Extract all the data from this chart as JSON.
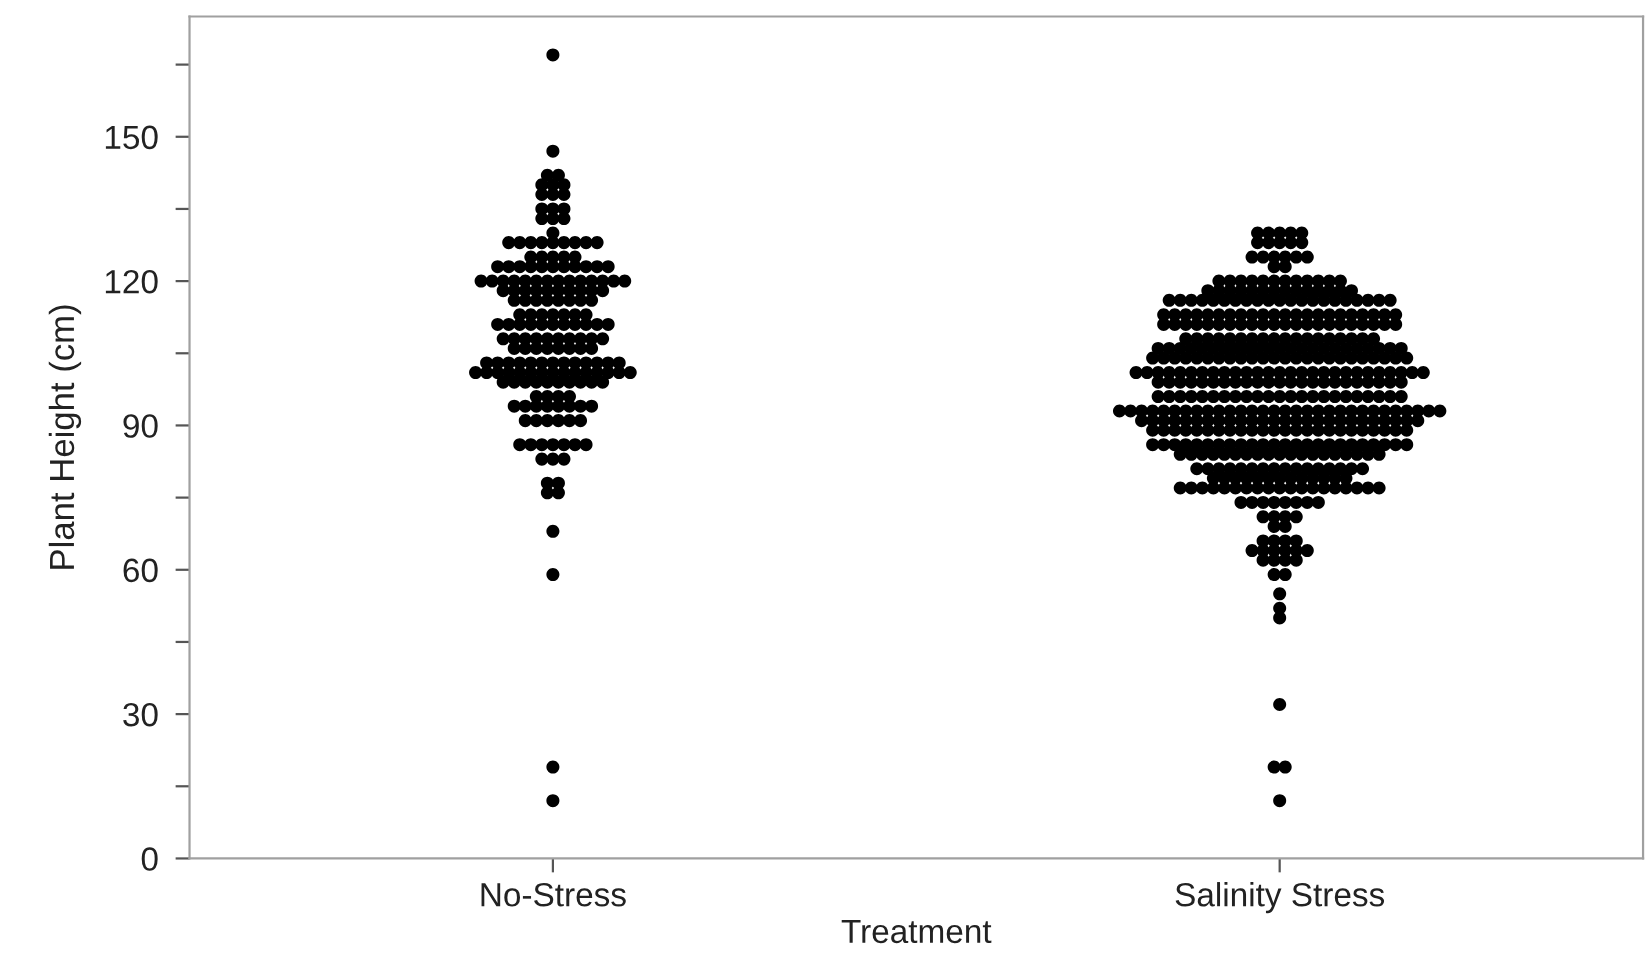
{
  "chart_data": {
    "type": "scatter",
    "xlabel": "Treatment",
    "ylabel": "Plant Height (cm)",
    "categories": [
      "No-Stress",
      "Salinity Stress"
    ],
    "ylim": [
      0,
      175
    ],
    "yticks": [
      0,
      {
        "value": 15,
        "label": null
      },
      30,
      {
        "value": 45,
        "label": null
      },
      60,
      {
        "value": 75,
        "label": null
      },
      90,
      {
        "value": 105,
        "label": null
      },
      120,
      {
        "value": 135,
        "label": null
      },
      150,
      {
        "value": 165,
        "label": null
      }
    ],
    "grid": false,
    "legend": false,
    "marker": "circle",
    "series": [
      {
        "color": "#000000",
        "x": [
          "No-Stress",
          "No-Stress",
          "No-Stress",
          "No-Stress",
          "No-Stress",
          "No-Stress",
          "No-Stress",
          "No-Stress",
          "No-Stress",
          "No-Stress",
          "No-Stress",
          "No-Stress",
          "No-Stress",
          "No-Stress",
          "No-Stress",
          "No-Stress",
          "No-Stress",
          "No-Stress",
          "No-Stress",
          "No-Stress",
          "No-Stress",
          "No-Stress",
          "No-Stress",
          "No-Stress",
          "No-Stress",
          "No-Stress",
          "No-Stress",
          "No-Stress",
          "No-Stress",
          "No-Stress",
          "No-Stress",
          "No-Stress",
          "No-Stress",
          "No-Stress",
          "No-Stress",
          "No-Stress",
          "No-Stress",
          "No-Stress",
          "No-Stress",
          "No-Stress",
          "No-Stress",
          "No-Stress",
          "No-Stress",
          "No-Stress",
          "No-Stress",
          "No-Stress",
          "No-Stress",
          "No-Stress",
          "No-Stress",
          "No-Stress",
          "No-Stress",
          "No-Stress",
          "No-Stress",
          "No-Stress",
          "No-Stress",
          "No-Stress",
          "No-Stress",
          "No-Stress",
          "No-Stress",
          "No-Stress",
          "No-Stress",
          "No-Stress",
          "No-Stress",
          "No-Stress",
          "No-Stress",
          "No-Stress",
          "No-Stress",
          "No-Stress",
          "No-Stress",
          "No-Stress",
          "No-Stress",
          "No-Stress",
          "No-Stress",
          "No-Stress",
          "No-Stress",
          "No-Stress",
          "No-Stress",
          "No-Stress",
          "No-Stress",
          "No-Stress",
          "No-Stress",
          "No-Stress",
          "No-Stress",
          "No-Stress",
          "No-Stress",
          "No-Stress",
          "No-Stress",
          "No-Stress",
          "No-Stress",
          "No-Stress",
          "No-Stress",
          "No-Stress",
          "No-Stress",
          "No-Stress",
          "No-Stress",
          "No-Stress",
          "No-Stress",
          "No-Stress",
          "No-Stress",
          "No-Stress",
          "No-Stress",
          "No-Stress",
          "No-Stress",
          "No-Stress",
          "No-Stress",
          "No-Stress",
          "No-Stress",
          "No-Stress",
          "No-Stress",
          "No-Stress",
          "No-Stress",
          "No-Stress",
          "No-Stress",
          "No-Stress",
          "No-Stress",
          "No-Stress",
          "No-Stress",
          "No-Stress",
          "No-Stress",
          "No-Stress",
          "No-Stress",
          "No-Stress",
          "No-Stress",
          "No-Stress",
          "No-Stress",
          "No-Stress",
          "No-Stress",
          "No-Stress",
          "No-Stress",
          "No-Stress",
          "No-Stress",
          "No-Stress",
          "No-Stress",
          "No-Stress",
          "No-Stress",
          "No-Stress",
          "No-Stress",
          "No-Stress",
          "No-Stress",
          "No-Stress",
          "No-Stress",
          "No-Stress",
          "No-Stress",
          "No-Stress",
          "No-Stress",
          "No-Stress",
          "No-Stress",
          "No-Stress",
          "No-Stress",
          "No-Stress",
          "No-Stress",
          "No-Stress",
          "No-Stress",
          "No-Stress",
          "No-Stress",
          "No-Stress",
          "No-Stress",
          "No-Stress",
          "No-Stress",
          "No-Stress",
          "No-Stress",
          "No-Stress",
          "No-Stress",
          "No-Stress",
          "No-Stress",
          "No-Stress",
          "No-Stress",
          "No-Stress",
          "No-Stress",
          "No-Stress",
          "No-Stress",
          "No-Stress",
          "No-Stress",
          "No-Stress",
          "No-Stress",
          "No-Stress",
          "No-Stress",
          "No-Stress",
          "No-Stress",
          "No-Stress",
          "No-Stress",
          "No-Stress",
          "No-Stress",
          "No-Stress"
        ],
        "values": [
          167,
          147,
          142,
          142,
          140,
          140,
          140,
          138,
          138,
          138,
          135,
          135,
          135,
          133,
          133,
          133,
          130,
          128,
          128,
          128,
          128,
          128,
          128,
          128,
          128,
          128,
          125,
          125,
          125,
          125,
          125,
          123,
          123,
          123,
          123,
          123,
          123,
          123,
          123,
          123,
          123,
          123,
          120,
          120,
          120,
          120,
          120,
          120,
          120,
          120,
          120,
          120,
          120,
          120,
          120,
          120,
          118,
          118,
          118,
          118,
          118,
          118,
          118,
          118,
          118,
          118,
          116,
          116,
          116,
          116,
          116,
          116,
          116,
          116,
          113,
          113,
          113,
          113,
          113,
          113,
          113,
          111,
          111,
          111,
          111,
          111,
          111,
          111,
          111,
          111,
          111,
          111,
          108,
          108,
          108,
          108,
          108,
          108,
          108,
          108,
          108,
          108,
          106,
          106,
          106,
          106,
          106,
          106,
          106,
          106,
          103,
          103,
          103,
          103,
          103,
          103,
          103,
          103,
          103,
          103,
          103,
          103,
          103,
          101,
          101,
          101,
          101,
          101,
          101,
          101,
          101,
          101,
          101,
          101,
          101,
          101,
          101,
          101,
          99,
          99,
          99,
          99,
          99,
          99,
          99,
          99,
          99,
          99,
          96,
          96,
          96,
          96,
          94,
          94,
          94,
          94,
          94,
          94,
          94,
          94,
          91,
          91,
          91,
          91,
          91,
          91,
          86,
          86,
          86,
          86,
          86,
          86,
          86,
          83,
          83,
          83,
          78,
          78,
          76,
          76,
          68,
          59,
          19,
          12
        ]
      },
      {
        "color": "#000000",
        "x": [
          "Salinity Stress",
          "Salinity Stress",
          "Salinity Stress",
          "Salinity Stress",
          "Salinity Stress",
          "Salinity Stress",
          "Salinity Stress",
          "Salinity Stress",
          "Salinity Stress",
          "Salinity Stress",
          "Salinity Stress",
          "Salinity Stress",
          "Salinity Stress",
          "Salinity Stress",
          "Salinity Stress",
          "Salinity Stress",
          "Salinity Stress",
          "Salinity Stress",
          "Salinity Stress",
          "Salinity Stress",
          "Salinity Stress",
          "Salinity Stress",
          "Salinity Stress",
          "Salinity Stress",
          "Salinity Stress",
          "Salinity Stress",
          "Salinity Stress",
          "Salinity Stress",
          "Salinity Stress",
          "Salinity Stress",
          "Salinity Stress",
          "Salinity Stress",
          "Salinity Stress",
          "Salinity Stress",
          "Salinity Stress",
          "Salinity Stress",
          "Salinity Stress",
          "Salinity Stress",
          "Salinity Stress",
          "Salinity Stress",
          "Salinity Stress",
          "Salinity Stress",
          "Salinity Stress",
          "Salinity Stress",
          "Salinity Stress",
          "Salinity Stress",
          "Salinity Stress",
          "Salinity Stress",
          "Salinity Stress",
          "Salinity Stress",
          "Salinity Stress",
          "Salinity Stress",
          "Salinity Stress",
          "Salinity Stress",
          "Salinity Stress",
          "Salinity Stress",
          "Salinity Stress",
          "Salinity Stress",
          "Salinity Stress",
          "Salinity Stress",
          "Salinity Stress",
          "Salinity Stress",
          "Salinity Stress",
          "Salinity Stress",
          "Salinity Stress",
          "Salinity Stress",
          "Salinity Stress",
          "Salinity Stress",
          "Salinity Stress",
          "Salinity Stress",
          "Salinity Stress",
          "Salinity Stress",
          "Salinity Stress",
          "Salinity Stress",
          "Salinity Stress",
          "Salinity Stress",
          "Salinity Stress",
          "Salinity Stress",
          "Salinity Stress",
          "Salinity Stress",
          "Salinity Stress",
          "Salinity Stress",
          "Salinity Stress",
          "Salinity Stress",
          "Salinity Stress",
          "Salinity Stress",
          "Salinity Stress",
          "Salinity Stress",
          "Salinity Stress",
          "Salinity Stress",
          "Salinity Stress",
          "Salinity Stress",
          "Salinity Stress",
          "Salinity Stress",
          "Salinity Stress",
          "Salinity Stress",
          "Salinity Stress",
          "Salinity Stress",
          "Salinity Stress",
          "Salinity Stress",
          "Salinity Stress",
          "Salinity Stress",
          "Salinity Stress",
          "Salinity Stress",
          "Salinity Stress",
          "Salinity Stress",
          "Salinity Stress",
          "Salinity Stress",
          "Salinity Stress",
          "Salinity Stress",
          "Salinity Stress",
          "Salinity Stress",
          "Salinity Stress",
          "Salinity Stress",
          "Salinity Stress",
          "Salinity Stress",
          "Salinity Stress",
          "Salinity Stress",
          "Salinity Stress",
          "Salinity Stress",
          "Salinity Stress",
          "Salinity Stress",
          "Salinity Stress",
          "Salinity Stress",
          "Salinity Stress",
          "Salinity Stress",
          "Salinity Stress",
          "Salinity Stress",
          "Salinity Stress",
          "Salinity Stress",
          "Salinity Stress",
          "Salinity Stress",
          "Salinity Stress",
          "Salinity Stress",
          "Salinity Stress",
          "Salinity Stress",
          "Salinity Stress",
          "Salinity Stress",
          "Salinity Stress",
          "Salinity Stress",
          "Salinity Stress",
          "Salinity Stress",
          "Salinity Stress",
          "Salinity Stress",
          "Salinity Stress",
          "Salinity Stress",
          "Salinity Stress",
          "Salinity Stress",
          "Salinity Stress",
          "Salinity Stress",
          "Salinity Stress",
          "Salinity Stress",
          "Salinity Stress",
          "Salinity Stress",
          "Salinity Stress",
          "Salinity Stress",
          "Salinity Stress",
          "Salinity Stress",
          "Salinity Stress",
          "Salinity Stress",
          "Salinity Stress",
          "Salinity Stress",
          "Salinity Stress",
          "Salinity Stress",
          "Salinity Stress",
          "Salinity Stress",
          "Salinity Stress",
          "Salinity Stress",
          "Salinity Stress",
          "Salinity Stress",
          "Salinity Stress",
          "Salinity Stress",
          "Salinity Stress",
          "Salinity Stress",
          "Salinity Stress",
          "Salinity Stress",
          "Salinity Stress",
          "Salinity Stress",
          "Salinity Stress",
          "Salinity Stress",
          "Salinity Stress",
          "Salinity Stress",
          "Salinity Stress",
          "Salinity Stress",
          "Salinity Stress",
          "Salinity Stress",
          "Salinity Stress",
          "Salinity Stress",
          "Salinity Stress",
          "Salinity Stress",
          "Salinity Stress",
          "Salinity Stress",
          "Salinity Stress",
          "Salinity Stress",
          "Salinity Stress",
          "Salinity Stress",
          "Salinity Stress",
          "Salinity Stress",
          "Salinity Stress",
          "Salinity Stress",
          "Salinity Stress",
          "Salinity Stress",
          "Salinity Stress",
          "Salinity Stress",
          "Salinity Stress",
          "Salinity Stress",
          "Salinity Stress",
          "Salinity Stress",
          "Salinity Stress",
          "Salinity Stress",
          "Salinity Stress",
          "Salinity Stress",
          "Salinity Stress",
          "Salinity Stress",
          "Salinity Stress",
          "Salinity Stress",
          "Salinity Stress",
          "Salinity Stress",
          "Salinity Stress",
          "Salinity Stress",
          "Salinity Stress",
          "Salinity Stress",
          "Salinity Stress",
          "Salinity Stress",
          "Salinity Stress",
          "Salinity Stress",
          "Salinity Stress",
          "Salinity Stress",
          "Salinity Stress",
          "Salinity Stress",
          "Salinity Stress",
          "Salinity Stress",
          "Salinity Stress",
          "Salinity Stress",
          "Salinity Stress",
          "Salinity Stress",
          "Salinity Stress",
          "Salinity Stress",
          "Salinity Stress",
          "Salinity Stress",
          "Salinity Stress",
          "Salinity Stress",
          "Salinity Stress",
          "Salinity Stress",
          "Salinity Stress",
          "Salinity Stress",
          "Salinity Stress",
          "Salinity Stress",
          "Salinity Stress",
          "Salinity Stress",
          "Salinity Stress",
          "Salinity Stress",
          "Salinity Stress",
          "Salinity Stress",
          "Salinity Stress",
          "Salinity Stress",
          "Salinity Stress",
          "Salinity Stress",
          "Salinity Stress",
          "Salinity Stress",
          "Salinity Stress",
          "Salinity Stress",
          "Salinity Stress",
          "Salinity Stress",
          "Salinity Stress",
          "Salinity Stress",
          "Salinity Stress",
          "Salinity Stress",
          "Salinity Stress",
          "Salinity Stress",
          "Salinity Stress",
          "Salinity Stress",
          "Salinity Stress",
          "Salinity Stress",
          "Salinity Stress",
          "Salinity Stress",
          "Salinity Stress",
          "Salinity Stress",
          "Salinity Stress",
          "Salinity Stress",
          "Salinity Stress",
          "Salinity Stress",
          "Salinity Stress",
          "Salinity Stress",
          "Salinity Stress",
          "Salinity Stress",
          "Salinity Stress",
          "Salinity Stress",
          "Salinity Stress",
          "Salinity Stress",
          "Salinity Stress",
          "Salinity Stress",
          "Salinity Stress",
          "Salinity Stress",
          "Salinity Stress",
          "Salinity Stress",
          "Salinity Stress",
          "Salinity Stress",
          "Salinity Stress",
          "Salinity Stress",
          "Salinity Stress",
          "Salinity Stress",
          "Salinity Stress",
          "Salinity Stress",
          "Salinity Stress",
          "Salinity Stress",
          "Salinity Stress",
          "Salinity Stress",
          "Salinity Stress",
          "Salinity Stress",
          "Salinity Stress",
          "Salinity Stress",
          "Salinity Stress",
          "Salinity Stress",
          "Salinity Stress",
          "Salinity Stress",
          "Salinity Stress",
          "Salinity Stress",
          "Salinity Stress",
          "Salinity Stress",
          "Salinity Stress",
          "Salinity Stress",
          "Salinity Stress",
          "Salinity Stress",
          "Salinity Stress",
          "Salinity Stress",
          "Salinity Stress",
          "Salinity Stress",
          "Salinity Stress",
          "Salinity Stress",
          "Salinity Stress",
          "Salinity Stress",
          "Salinity Stress",
          "Salinity Stress",
          "Salinity Stress",
          "Salinity Stress",
          "Salinity Stress",
          "Salinity Stress",
          "Salinity Stress",
          "Salinity Stress",
          "Salinity Stress",
          "Salinity Stress",
          "Salinity Stress",
          "Salinity Stress",
          "Salinity Stress",
          "Salinity Stress",
          "Salinity Stress",
          "Salinity Stress",
          "Salinity Stress",
          "Salinity Stress",
          "Salinity Stress",
          "Salinity Stress",
          "Salinity Stress",
          "Salinity Stress",
          "Salinity Stress",
          "Salinity Stress",
          "Salinity Stress",
          "Salinity Stress",
          "Salinity Stress",
          "Salinity Stress",
          "Salinity Stress",
          "Salinity Stress",
          "Salinity Stress",
          "Salinity Stress",
          "Salinity Stress",
          "Salinity Stress",
          "Salinity Stress",
          "Salinity Stress",
          "Salinity Stress",
          "Salinity Stress",
          "Salinity Stress",
          "Salinity Stress",
          "Salinity Stress",
          "Salinity Stress",
          "Salinity Stress",
          "Salinity Stress",
          "Salinity Stress",
          "Salinity Stress",
          "Salinity Stress",
          "Salinity Stress",
          "Salinity Stress",
          "Salinity Stress",
          "Salinity Stress",
          "Salinity Stress",
          "Salinity Stress",
          "Salinity Stress",
          "Salinity Stress",
          "Salinity Stress",
          "Salinity Stress",
          "Salinity Stress",
          "Salinity Stress",
          "Salinity Stress",
          "Salinity Stress",
          "Salinity Stress",
          "Salinity Stress",
          "Salinity Stress",
          "Salinity Stress",
          "Salinity Stress",
          "Salinity Stress",
          "Salinity Stress",
          "Salinity Stress",
          "Salinity Stress",
          "Salinity Stress",
          "Salinity Stress",
          "Salinity Stress",
          "Salinity Stress",
          "Salinity Stress",
          "Salinity Stress",
          "Salinity Stress",
          "Salinity Stress",
          "Salinity Stress",
          "Salinity Stress",
          "Salinity Stress",
          "Salinity Stress",
          "Salinity Stress",
          "Salinity Stress",
          "Salinity Stress",
          "Salinity Stress",
          "Salinity Stress",
          "Salinity Stress",
          "Salinity Stress",
          "Salinity Stress",
          "Salinity Stress",
          "Salinity Stress",
          "Salinity Stress",
          "Salinity Stress",
          "Salinity Stress",
          "Salinity Stress",
          "Salinity Stress",
          "Salinity Stress",
          "Salinity Stress",
          "Salinity Stress",
          "Salinity Stress",
          "Salinity Stress",
          "Salinity Stress",
          "Salinity Stress",
          "Salinity Stress",
          "Salinity Stress",
          "Salinity Stress",
          "Salinity Stress",
          "Salinity Stress",
          "Salinity Stress",
          "Salinity Stress",
          "Salinity Stress",
          "Salinity Stress",
          "Salinity Stress",
          "Salinity Stress",
          "Salinity Stress",
          "Salinity Stress",
          "Salinity Stress",
          "Salinity Stress",
          "Salinity Stress",
          "Salinity Stress",
          "Salinity Stress",
          "Salinity Stress"
        ],
        "values": [
          130,
          130,
          130,
          130,
          130,
          128,
          128,
          128,
          128,
          128,
          125,
          125,
          125,
          125,
          125,
          125,
          123,
          123,
          120,
          120,
          120,
          120,
          120,
          120,
          120,
          120,
          120,
          120,
          120,
          120,
          118,
          118,
          118,
          118,
          118,
          118,
          118,
          118,
          118,
          118,
          118,
          118,
          118,
          118,
          116,
          116,
          116,
          116,
          116,
          116,
          116,
          116,
          116,
          116,
          116,
          116,
          116,
          116,
          116,
          116,
          116,
          116,
          116,
          116,
          116,
          113,
          113,
          113,
          113,
          113,
          113,
          113,
          113,
          113,
          113,
          113,
          113,
          113,
          113,
          113,
          113,
          113,
          113,
          113,
          113,
          113,
          113,
          111,
          111,
          111,
          111,
          111,
          111,
          111,
          111,
          111,
          111,
          111,
          111,
          111,
          111,
          111,
          111,
          111,
          111,
          111,
          111,
          111,
          111,
          108,
          108,
          108,
          108,
          108,
          108,
          108,
          108,
          108,
          108,
          108,
          108,
          108,
          108,
          108,
          108,
          108,
          108,
          106,
          106,
          106,
          106,
          106,
          106,
          106,
          106,
          106,
          106,
          106,
          106,
          106,
          106,
          106,
          106,
          106,
          106,
          106,
          106,
          106,
          106,
          106,
          104,
          104,
          104,
          104,
          104,
          104,
          104,
          104,
          104,
          104,
          104,
          104,
          104,
          104,
          104,
          104,
          104,
          104,
          104,
          104,
          104,
          104,
          104,
          104,
          101,
          101,
          101,
          101,
          101,
          101,
          101,
          101,
          101,
          101,
          101,
          101,
          101,
          101,
          101,
          101,
          101,
          101,
          101,
          101,
          101,
          101,
          101,
          101,
          101,
          101,
          101,
          99,
          99,
          99,
          99,
          99,
          99,
          99,
          99,
          99,
          99,
          99,
          99,
          99,
          99,
          99,
          99,
          99,
          99,
          99,
          99,
          99,
          99,
          99,
          96,
          96,
          96,
          96,
          96,
          96,
          96,
          96,
          96,
          96,
          96,
          96,
          96,
          96,
          96,
          96,
          96,
          96,
          96,
          96,
          96,
          96,
          96,
          93,
          93,
          93,
          93,
          93,
          93,
          93,
          93,
          93,
          93,
          93,
          93,
          93,
          93,
          93,
          93,
          93,
          93,
          93,
          93,
          93,
          93,
          93,
          93,
          93,
          93,
          93,
          93,
          93,
          93,
          91,
          91,
          91,
          91,
          91,
          91,
          91,
          91,
          91,
          91,
          91,
          91,
          91,
          91,
          91,
          91,
          91,
          91,
          91,
          91,
          91,
          91,
          91,
          91,
          91,
          91,
          89,
          89,
          89,
          89,
          89,
          89,
          89,
          89,
          89,
          89,
          89,
          89,
          89,
          89,
          89,
          89,
          89,
          89,
          89,
          89,
          89,
          89,
          89,
          89,
          86,
          86,
          86,
          86,
          86,
          86,
          86,
          86,
          86,
          86,
          86,
          86,
          86,
          86,
          86,
          86,
          86,
          86,
          86,
          86,
          86,
          86,
          86,
          86,
          84,
          84,
          84,
          84,
          84,
          84,
          84,
          84,
          84,
          84,
          84,
          84,
          84,
          84,
          84,
          84,
          84,
          84,
          84,
          81,
          81,
          81,
          81,
          81,
          81,
          81,
          81,
          81,
          81,
          81,
          81,
          81,
          81,
          81,
          81,
          79,
          79,
          79,
          79,
          79,
          79,
          79,
          79,
          79,
          79,
          79,
          79,
          79,
          77,
          77,
          77,
          77,
          77,
          77,
          77,
          77,
          77,
          77,
          77,
          77,
          77,
          77,
          77,
          77,
          77,
          77,
          77,
          74,
          74,
          74,
          74,
          74,
          74,
          74,
          74,
          71,
          71,
          71,
          71,
          69,
          69,
          66,
          66,
          66,
          66,
          64,
          64,
          64,
          64,
          64,
          64,
          62,
          62,
          62,
          62,
          59,
          59,
          55,
          52,
          50,
          32,
          19,
          19,
          12
        ]
      }
    ]
  }
}
